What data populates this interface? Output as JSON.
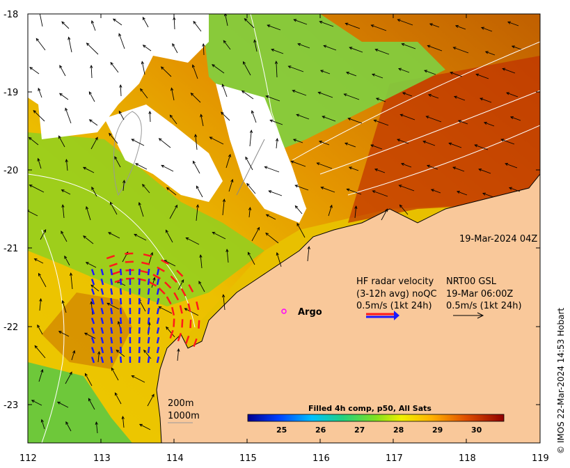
{
  "map": {
    "lat_ticks": [
      "-18",
      "-19",
      "-20",
      "-21",
      "-22",
      "-23"
    ],
    "lon_ticks": [
      "112",
      "113",
      "114",
      "115",
      "116",
      "117",
      "118",
      "119"
    ],
    "timestamp": "19-Mar-2024 04Z",
    "argo_label": "Argo",
    "radar_title": "HF radar velocity",
    "radar_avg": "(3-12h avg) noQC",
    "radar_scale": "0.5m/s (1kt 24h)",
    "current_title": "NRT00 GSL",
    "current_time": "19-Mar 06:00Z",
    "current_scale": "0.5m/s (1kt 24h)",
    "isobath_200": "200m",
    "isobath_1000": "1000m",
    "credit": "© IMOS 22-Mar-2024 14:53 Hobart"
  },
  "colorbar": {
    "title": "Filled 4h comp, p50, All Sats",
    "tick_labels": [
      "25",
      "26",
      "27",
      "28",
      "29",
      "30"
    ]
  },
  "colors": {
    "land": "#f9c89a",
    "radar_red": "#ff1a1a",
    "radar_blue": "#1a1aff",
    "argo_marker": "#ff00ff"
  }
}
